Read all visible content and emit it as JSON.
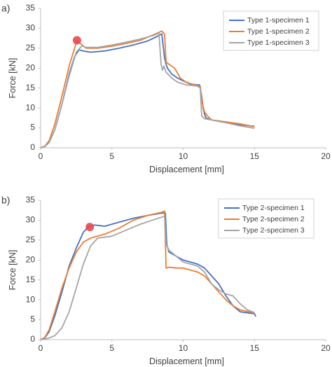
{
  "chart_data": [
    {
      "type": "line",
      "panel_label": "a)",
      "xlabel": "Displacement [mm]",
      "ylabel": "Force [kN]",
      "xlim": [
        0,
        20
      ],
      "ylim": [
        0,
        35
      ],
      "xticks": [
        "0",
        "5",
        "10",
        "15",
        "20"
      ],
      "yticks": [
        "0",
        "5",
        "10",
        "15",
        "20",
        "25",
        "30",
        "35"
      ],
      "legend_position": "top-right",
      "grid": false,
      "marker": {
        "x": 2.55,
        "y": 27.0,
        "color": "#e8484f"
      },
      "series": [
        {
          "name": "Type 1-specimen 1",
          "color": "#4472c4",
          "points": [
            [
              0,
              0
            ],
            [
              0.3,
              0.4
            ],
            [
              0.6,
              1.5
            ],
            [
              1.0,
              4.5
            ],
            [
              1.5,
              11
            ],
            [
              2.0,
              18.5
            ],
            [
              2.4,
              23
            ],
            [
              2.7,
              24.6
            ],
            [
              3.0,
              24.3
            ],
            [
              3.5,
              24
            ],
            [
              4.5,
              24.3
            ],
            [
              5.5,
              25
            ],
            [
              6.5,
              25.8
            ],
            [
              7.5,
              26.8
            ],
            [
              8.2,
              28
            ],
            [
              8.5,
              28.6
            ],
            [
              8.6,
              25.5
            ],
            [
              8.7,
              22.5
            ],
            [
              8.8,
              21
            ],
            [
              8.9,
              20
            ],
            [
              9.2,
              18.5
            ],
            [
              9.6,
              17.5
            ],
            [
              10.0,
              16.8
            ],
            [
              10.5,
              16.0
            ],
            [
              11.0,
              15.8
            ],
            [
              11.15,
              15.8
            ],
            [
              11.3,
              13
            ],
            [
              11.4,
              10
            ],
            [
              11.5,
              8.5
            ],
            [
              11.6,
              7.5
            ],
            [
              12.0,
              7.0
            ],
            [
              13.0,
              6.3
            ],
            [
              14.0,
              5.8
            ],
            [
              15.0,
              5.4
            ]
          ]
        },
        {
          "name": "Type 1-specimen 2",
          "color": "#ed7d31",
          "points": [
            [
              0,
              0
            ],
            [
              0.3,
              0.4
            ],
            [
              0.6,
              1.8
            ],
            [
              1.0,
              6
            ],
            [
              1.5,
              13
            ],
            [
              2.0,
              20.5
            ],
            [
              2.55,
              27
            ],
            [
              2.85,
              26
            ],
            [
              3.2,
              25
            ],
            [
              4.0,
              25
            ],
            [
              5.0,
              25.5
            ],
            [
              6.0,
              26.2
            ],
            [
              7.0,
              27
            ],
            [
              8.0,
              28.5
            ],
            [
              8.5,
              29.3
            ],
            [
              8.7,
              28.5
            ],
            [
              8.8,
              21.5
            ],
            [
              9.0,
              21
            ],
            [
              9.4,
              20
            ],
            [
              9.8,
              17.5
            ],
            [
              10.2,
              16.5
            ],
            [
              10.8,
              15.8
            ],
            [
              11.2,
              15.5
            ],
            [
              11.35,
              11
            ],
            [
              11.5,
              9
            ],
            [
              11.7,
              8
            ],
            [
              12.0,
              7
            ],
            [
              13.0,
              6.5
            ],
            [
              14.0,
              6
            ],
            [
              15.0,
              5.3
            ]
          ]
        },
        {
          "name": "Type 1-specimen 3",
          "color": "#a5a5a5",
          "points": [
            [
              0,
              0
            ],
            [
              0.3,
              0.3
            ],
            [
              0.6,
              1.3
            ],
            [
              1.0,
              4.5
            ],
            [
              1.5,
              11
            ],
            [
              2.0,
              18
            ],
            [
              2.5,
              24
            ],
            [
              2.9,
              25.6
            ],
            [
              3.2,
              25.2
            ],
            [
              4.0,
              25.2
            ],
            [
              5.0,
              25.8
            ],
            [
              6.0,
              26.5
            ],
            [
              7.0,
              27.3
            ],
            [
              8.0,
              28.3
            ],
            [
              8.3,
              28.8
            ],
            [
              8.45,
              21
            ],
            [
              8.55,
              19.5
            ],
            [
              8.65,
              20.5
            ],
            [
              8.8,
              19
            ],
            [
              9.2,
              17.5
            ],
            [
              9.6,
              16.5
            ],
            [
              10.2,
              15.8
            ],
            [
              11.0,
              15.5
            ],
            [
              11.2,
              15
            ],
            [
              11.3,
              8
            ],
            [
              11.5,
              7.3
            ],
            [
              12.0,
              7
            ],
            [
              13.0,
              6.3
            ],
            [
              14.0,
              5.5
            ],
            [
              15.0,
              4.9
            ]
          ]
        }
      ]
    },
    {
      "type": "line",
      "panel_label": "b)",
      "xlabel": "Displacement [mm]",
      "ylabel": "Force [kN]",
      "xlim": [
        0,
        20
      ],
      "ylim": [
        0,
        35
      ],
      "xticks": [
        "0",
        "5",
        "10",
        "15",
        "20"
      ],
      "yticks": [
        "0",
        "5",
        "10",
        "15",
        "20",
        "25",
        "30",
        "35"
      ],
      "legend_position": "top-right",
      "grid": false,
      "marker": {
        "x": 3.45,
        "y": 28.3,
        "color": "#e8484f"
      },
      "series": [
        {
          "name": "Type 2-specimen 1",
          "color": "#4472c4",
          "points": [
            [
              0,
              0
            ],
            [
              0.3,
              0.5
            ],
            [
              0.6,
              2
            ],
            [
              1.0,
              6
            ],
            [
              1.5,
              12
            ],
            [
              2.0,
              18.5
            ],
            [
              2.5,
              23
            ],
            [
              3.0,
              27
            ],
            [
              3.4,
              28.5
            ],
            [
              3.8,
              28.8
            ],
            [
              4.5,
              28.5
            ],
            [
              5.5,
              29.5
            ],
            [
              6.5,
              30.5
            ],
            [
              7.5,
              31.2
            ],
            [
              8.5,
              31.8
            ],
            [
              8.75,
              31.8
            ],
            [
              8.85,
              24
            ],
            [
              9.0,
              22
            ],
            [
              9.5,
              21
            ],
            [
              10.0,
              20
            ],
            [
              10.5,
              19.5
            ],
            [
              11.0,
              19
            ],
            [
              11.5,
              18
            ],
            [
              12.0,
              16
            ],
            [
              12.5,
              14
            ],
            [
              13.0,
              11
            ],
            [
              13.5,
              8.5
            ],
            [
              14.0,
              7
            ],
            [
              15.0,
              6.5
            ],
            [
              15.1,
              5.8
            ]
          ]
        },
        {
          "name": "Type 2-specimen 2",
          "color": "#ed7d31",
          "points": [
            [
              0,
              0
            ],
            [
              0.3,
              0.6
            ],
            [
              0.6,
              2.5
            ],
            [
              1.0,
              7
            ],
            [
              1.5,
              13
            ],
            [
              2.0,
              18
            ],
            [
              2.5,
              22
            ],
            [
              3.0,
              24.5
            ],
            [
              3.5,
              25.5
            ],
            [
              4.5,
              26.5
            ],
            [
              5.5,
              28
            ],
            [
              6.5,
              30
            ],
            [
              7.5,
              31.2
            ],
            [
              8.5,
              32
            ],
            [
              8.7,
              32.3
            ],
            [
              8.8,
              18
            ],
            [
              9.0,
              18.2
            ],
            [
              9.5,
              18
            ],
            [
              10.0,
              18
            ],
            [
              10.5,
              17.5
            ],
            [
              11.0,
              17
            ],
            [
              11.5,
              16
            ],
            [
              12.0,
              14
            ],
            [
              12.5,
              12
            ],
            [
              13.0,
              10
            ],
            [
              13.5,
              8.5
            ],
            [
              14.0,
              7.5
            ],
            [
              15.0,
              6.7
            ]
          ]
        },
        {
          "name": "Type 2-specimen 3",
          "color": "#a5a5a5",
          "points": [
            [
              0,
              0
            ],
            [
              0.5,
              0.3
            ],
            [
              1.0,
              1
            ],
            [
              1.5,
              3
            ],
            [
              2.0,
              7
            ],
            [
              2.5,
              13
            ],
            [
              3.0,
              19
            ],
            [
              3.5,
              23.5
            ],
            [
              4.0,
              25.5
            ],
            [
              5.0,
              26
            ],
            [
              6.0,
              27.5
            ],
            [
              7.0,
              29
            ],
            [
              8.0,
              30.2
            ],
            [
              8.7,
              31
            ],
            [
              8.8,
              24
            ],
            [
              9.0,
              22.5
            ],
            [
              9.5,
              21
            ],
            [
              10.0,
              19.5
            ],
            [
              11.0,
              18.5
            ],
            [
              11.5,
              17
            ],
            [
              12.0,
              14
            ],
            [
              12.5,
              12.5
            ],
            [
              13.0,
              11.5
            ],
            [
              13.5,
              11
            ],
            [
              14.0,
              9
            ],
            [
              14.5,
              7.5
            ],
            [
              15.0,
              6.8
            ]
          ]
        }
      ]
    }
  ]
}
